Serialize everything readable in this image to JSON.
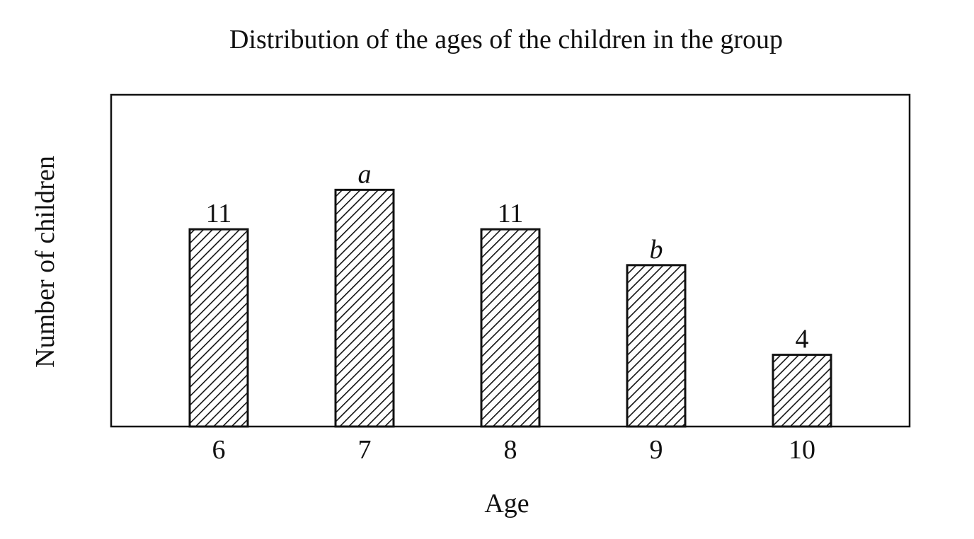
{
  "chart_data": {
    "type": "bar",
    "title": "Distribution of the ages of the children in the group",
    "xlabel": "Age",
    "ylabel": "Number of children",
    "categories": [
      "6",
      "7",
      "8",
      "9",
      "10"
    ],
    "values": [
      11,
      13.2,
      11,
      9,
      4
    ],
    "data_labels": [
      "11",
      "a",
      "11",
      "b",
      "4"
    ],
    "italic_labels": [
      false,
      true,
      false,
      true,
      false
    ],
    "ylim": [
      0,
      18.5
    ],
    "grid": false,
    "legend": "none",
    "bar_pattern": "diagonal-hatch",
    "bar_color": "#111111",
    "background_color": "#ffffff"
  }
}
